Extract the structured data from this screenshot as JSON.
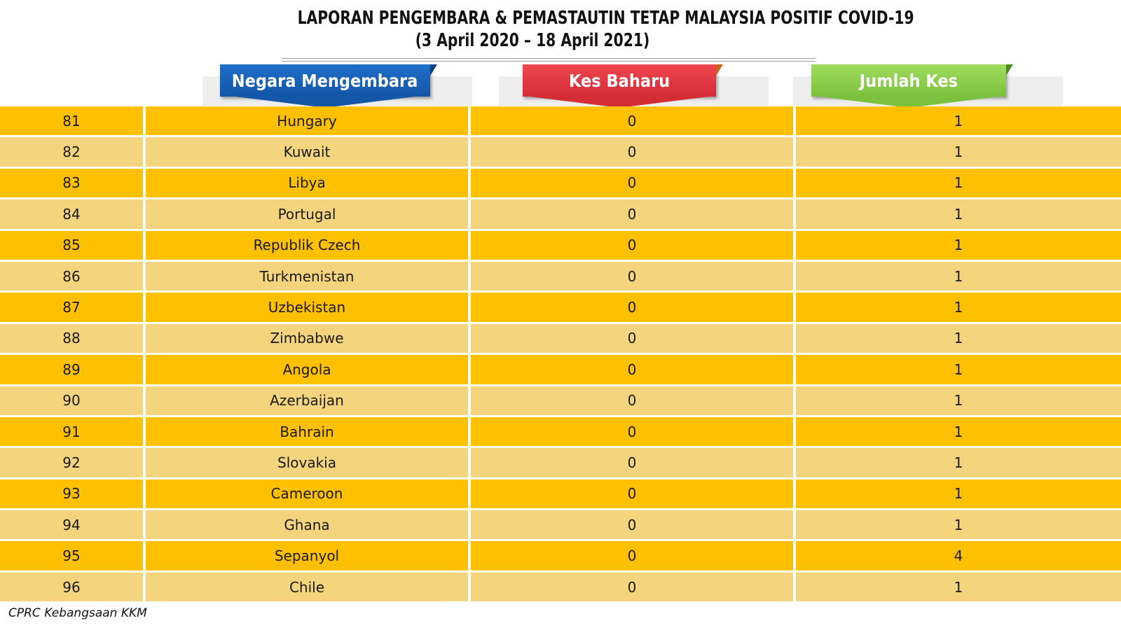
{
  "title": {
    "line1": "LAPORAN PENGEMBARA & PEMASTAUTIN TETAP MALAYSIA POSITIF COVID-19",
    "line2": "(3 April 2020 – 18 April  2021)"
  },
  "headers": {
    "country": "Negara Mengembara",
    "new_cases": "Kes Baharu",
    "total_cases": "Jumlah Kes"
  },
  "colors": {
    "row_dark": "#ffc000",
    "row_light": "#f5d47e",
    "header_country": "#1565c0",
    "header_new": "#e03c44",
    "header_total": "#8ccc4b"
  },
  "rows": [
    {
      "no": "81",
      "country": "Hungary",
      "new": "0",
      "total": "1"
    },
    {
      "no": "82",
      "country": "Kuwait",
      "new": "0",
      "total": "1"
    },
    {
      "no": "83",
      "country": "Libya",
      "new": "0",
      "total": "1"
    },
    {
      "no": "84",
      "country": "Portugal",
      "new": "0",
      "total": "1"
    },
    {
      "no": "85",
      "country": "Republik Czech",
      "new": "0",
      "total": "1"
    },
    {
      "no": "86",
      "country": "Turkmenistan",
      "new": "0",
      "total": "1"
    },
    {
      "no": "87",
      "country": "Uzbekistan",
      "new": "0",
      "total": "1"
    },
    {
      "no": "88",
      "country": "Zimbabwe",
      "new": "0",
      "total": "1"
    },
    {
      "no": "89",
      "country": "Angola",
      "new": "0",
      "total": "1"
    },
    {
      "no": "90",
      "country": "Azerbaijan",
      "new": "0",
      "total": "1"
    },
    {
      "no": "91",
      "country": "Bahrain",
      "new": "0",
      "total": "1"
    },
    {
      "no": "92",
      "country": "Slovakia",
      "new": "0",
      "total": "1"
    },
    {
      "no": "93",
      "country": "Cameroon",
      "new": "0",
      "total": "1"
    },
    {
      "no": "94",
      "country": "Ghana",
      "new": "0",
      "total": "1"
    },
    {
      "no": "95",
      "country": "Sepanyol",
      "new": "0",
      "total": "4"
    },
    {
      "no": "96",
      "country": "Chile",
      "new": "0",
      "total": "1"
    }
  ],
  "source": "CPRC Kebangsaan KKM"
}
